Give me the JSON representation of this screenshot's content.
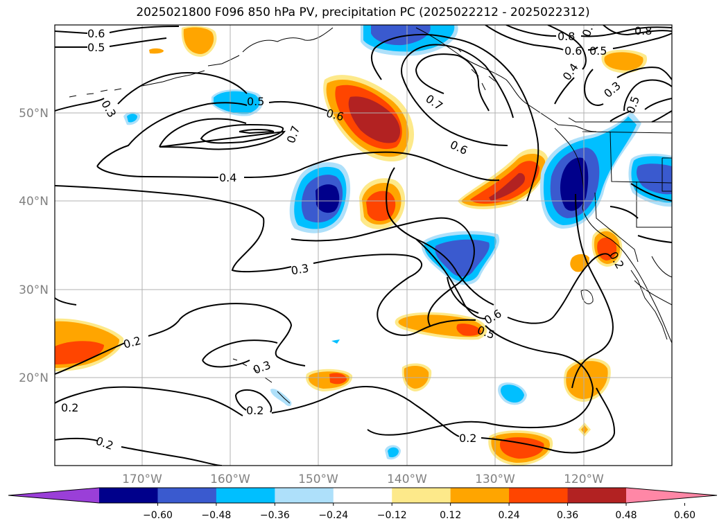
{
  "figure": {
    "title": "2025021800 F096 850 hPa PV, precipitation PC (2025022212 - 2025022312)"
  },
  "axes": {
    "lat_labels": [
      "50°N",
      "40°N",
      "30°N",
      "20°N"
    ],
    "lon_labels": [
      "170°W",
      "160°W",
      "150°W",
      "140°W",
      "130°W",
      "120°W"
    ]
  },
  "colorbar": {
    "colors": [
      "#9a3fd8",
      "#00008b",
      "#3a5acf",
      "#00bfff",
      "#aee0fa",
      "#ffffff",
      "#fde98a",
      "#ffa500",
      "#ff4500",
      "#b22222",
      "#ff87a6"
    ],
    "ticks": [
      "−0.60",
      "−0.48",
      "−0.36",
      "−0.24",
      "−0.12",
      "0.12",
      "0.24",
      "0.36",
      "0.48",
      "0.60"
    ]
  },
  "contour_labels": [
    "0.6",
    "0.5",
    "0.3",
    "0.5",
    "0.6",
    "0.7",
    "0.4",
    "0.7",
    "0.6",
    "0.3",
    "0.8",
    "0.7",
    "0.6",
    "0.5",
    "0.4",
    "0.3",
    "0.5",
    "0.8",
    "0.2",
    "0.3",
    "0.2",
    "0.2",
    "0.2",
    "0.6",
    "0.5",
    "0.2",
    "0.2"
  ]
}
